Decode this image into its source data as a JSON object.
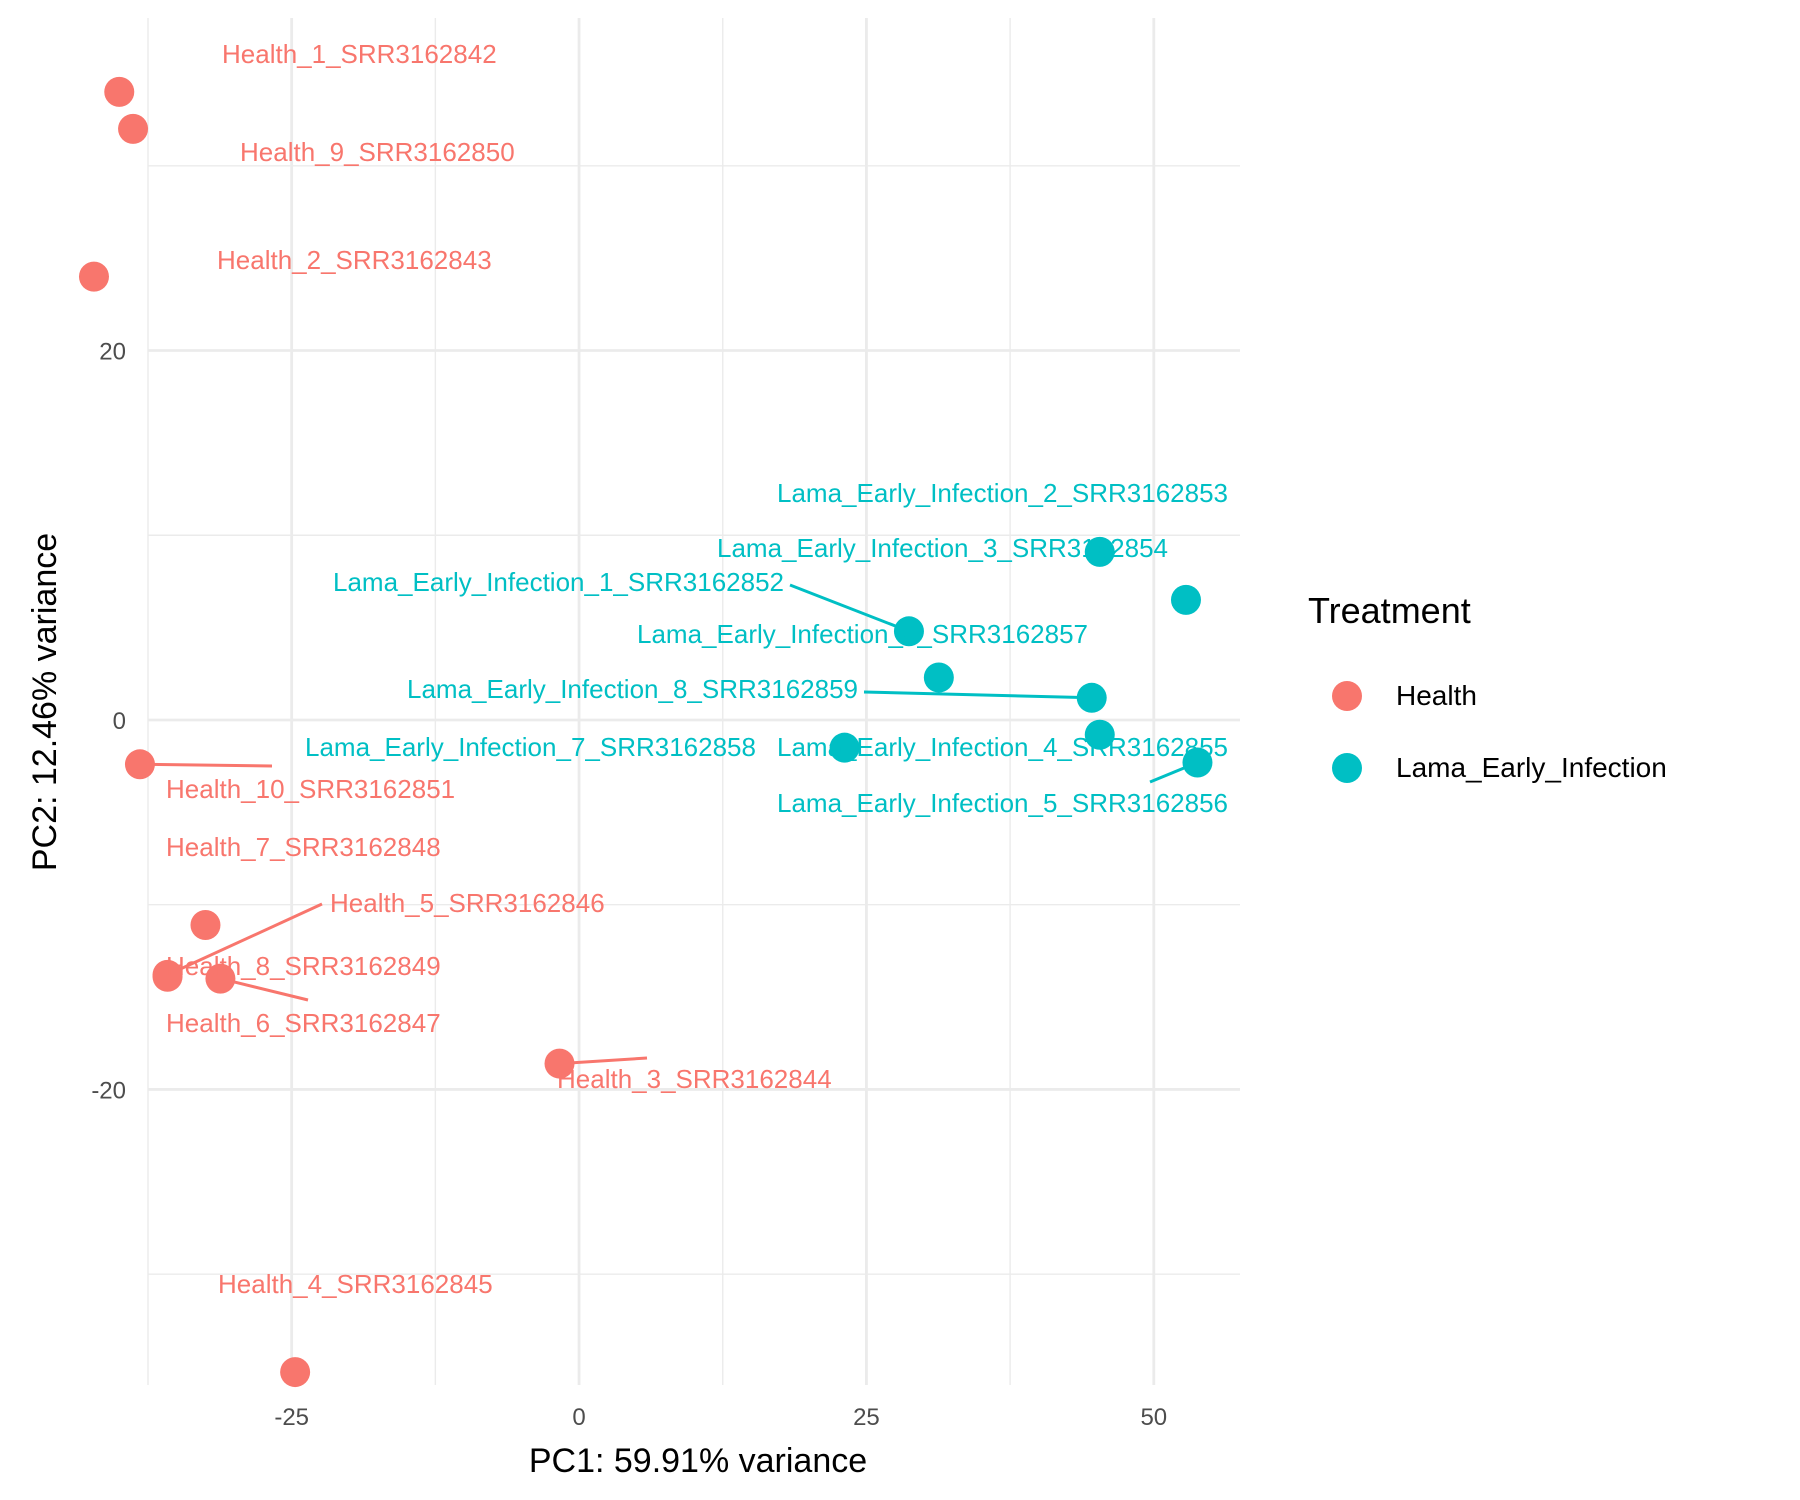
{
  "chart_data": {
    "type": "scatter",
    "xlabel": "PC1: 59.91% variance",
    "ylabel": "PC2: 12.46% variance",
    "xlim": [
      -37.5,
      57.5
    ],
    "ylim": [
      -36,
      38
    ],
    "x_ticks": [
      -25,
      0,
      25,
      50
    ],
    "y_ticks": [
      -20,
      0,
      20
    ],
    "x_minor": [
      -37.5,
      -12.5,
      12.5,
      37.5
    ],
    "y_minor": [
      -30,
      -10,
      10,
      30
    ],
    "grid": true,
    "legend": {
      "title": "Treatment",
      "placement": "right",
      "entries": [
        "Health",
        "Lama_Early_Infection"
      ]
    },
    "series": [
      {
        "name": "Health",
        "color": "#F8766D",
        "points": [
          {
            "label": "Health_1_SRR3162842",
            "x": -40,
            "y": 34
          },
          {
            "label": "Health_9_SRR3162850",
            "x": -38.8,
            "y": 32
          },
          {
            "label": "Health_2_SRR3162843",
            "x": -42.2,
            "y": 24
          },
          {
            "label": "Health_10_SRR3162851",
            "x": -38.2,
            "y": -2.4
          },
          {
            "label": "Health_7_SRR3162848",
            "x": -32.5,
            "y": -11.1
          },
          {
            "label": "Health_5_SRR3162846",
            "x": -35.8,
            "y": -13.8
          },
          {
            "label": "Health_8_SRR3162849",
            "x": -35.8,
            "y": -13.9
          },
          {
            "label": "Health_6_SRR3162847",
            "x": -31.2,
            "y": -14
          },
          {
            "label": "Health_3_SRR3162844",
            "x": -1.7,
            "y": -18.6
          },
          {
            "label": "Health_4_SRR3162845",
            "x": -24.7,
            "y": -35.3
          }
        ]
      },
      {
        "name": "Lama_Early_Infection",
        "color": "#00BFC4",
        "points": [
          {
            "label": "Lama_Early_Infection_2_SRR3162853",
            "x": 45.3,
            "y": 9.1
          },
          {
            "label": "Lama_Early_Infection_3_SRR3162854",
            "x": 52.8,
            "y": 6.5
          },
          {
            "label": "Lama_Early_Infection_1_SRR3162852",
            "x": 28.7,
            "y": 4.8
          },
          {
            "label": "Lama_Early_Infection_6_SRR3162857",
            "x": 31.3,
            "y": 2.3
          },
          {
            "label": "Lama_Early_Infection_8_SRR3162859",
            "x": 44.6,
            "y": 1.2
          },
          {
            "label": "Lama_Early_Infection_4_SRR3162855",
            "x": 45.3,
            "y": -0.8
          },
          {
            "label": "Lama_Early_Infection_7_SRR3162858",
            "x": 23.1,
            "y": -1.5
          },
          {
            "label": "Lama_Early_Infection_5_SRR3162856",
            "x": 53.8,
            "y": -2.3
          }
        ]
      }
    ]
  }
}
